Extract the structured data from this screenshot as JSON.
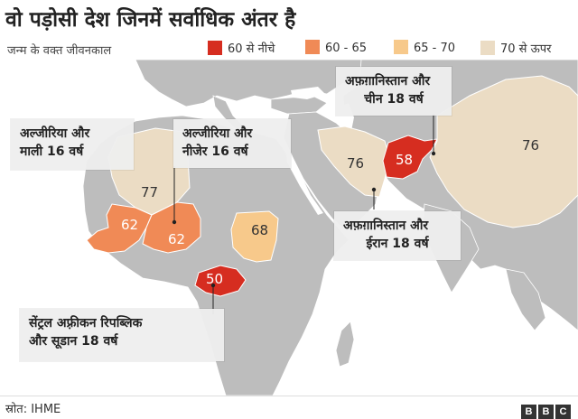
{
  "title": "वो पड़ोसी देश जिनमें सर्वाधिक अंतर है",
  "legend": {
    "label": "जन्म के वक्त जीवनकाल",
    "items": [
      {
        "label": "60 से नीचे",
        "color": "#d62d20"
      },
      {
        "label": "60 - 65",
        "color": "#f08a56"
      },
      {
        "label": "65 - 70",
        "color": "#f7c98b"
      },
      {
        "label": "70 से ऊपर",
        "color": "#ebdcc4"
      }
    ]
  },
  "countries": {
    "algeria": "77",
    "mali": "62",
    "niger": "62",
    "sudan": "68",
    "car": "50",
    "iran": "76",
    "afghanistan": "58",
    "china": "76"
  },
  "annotations": {
    "algeria_mali": [
      "अल्जीरिया और",
      "माली 16 वर्ष"
    ],
    "algeria_niger": [
      "अल्जीरिया और",
      "नीजेर 16 वर्ष"
    ],
    "afghanistan_china": [
      "अफ़ग़ानिस्तान और",
      "चीन 18 वर्ष"
    ],
    "afghanistan_iran": [
      "अफ़ग़ानिस्तान और",
      "ईरान 18 वर्ष"
    ],
    "car_sudan": [
      "सेंट्रल अफ़्रीकन रिपब्लिक",
      "और सूडान 18 वर्ष"
    ]
  },
  "source": "स्रोत: IHME",
  "brand": [
    "B",
    "B",
    "C"
  ],
  "colors": {
    "land": "#bdbdbd",
    "water": "#ffffff",
    "border": "#ffffff"
  }
}
